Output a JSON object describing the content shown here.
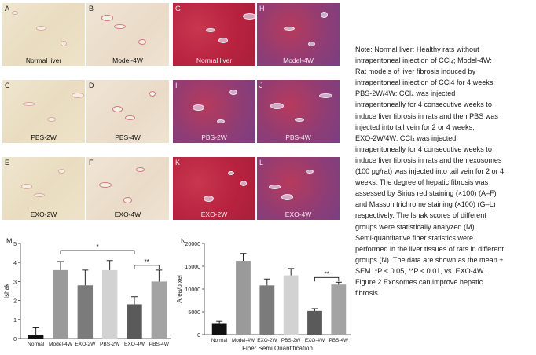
{
  "panels": [
    {
      "letter": "A",
      "caption": "Normal liver",
      "stain": "sirius"
    },
    {
      "letter": "B",
      "caption": "Model-4W",
      "stain": "sirius"
    },
    {
      "letter": "G",
      "caption": "Normal liver",
      "stain": "masson"
    },
    {
      "letter": "H",
      "caption": "Model-4W",
      "stain": "masson"
    },
    {
      "letter": "C",
      "caption": "PBS-2W",
      "stain": "sirius"
    },
    {
      "letter": "D",
      "caption": "PBS-4W",
      "stain": "sirius"
    },
    {
      "letter": "I",
      "caption": "PBS-2W",
      "stain": "masson"
    },
    {
      "letter": "J",
      "caption": "PBS-4W",
      "stain": "masson"
    },
    {
      "letter": "E",
      "caption": "EXO-2W",
      "stain": "sirius"
    },
    {
      "letter": "F",
      "caption": "EXO-4W",
      "stain": "sirius"
    },
    {
      "letter": "K",
      "caption": "EXO-2W",
      "stain": "masson"
    },
    {
      "letter": "L",
      "caption": "EXO-4W",
      "stain": "masson"
    }
  ],
  "note": {
    "lines": [
      "Note: Normal liver: Healthy rats without",
      "intraperitoneal injection of CCl₄; Model-4W:",
      "Rat models of liver fibrosis induced by",
      "intraperitoneal injection of CCl4 for 4 weeks;",
      "PBS-2W/4W: CCl₄ was injected",
      "intraperitoneally for 4 consecutive weeks to",
      "induce liver fibrosis in rats and then PBS was",
      "injected into tail vein for 2 or 4 weeks;",
      "EXO-2W/4W: CCl₄ was injected",
      "intraperitoneally for 4 consecutive weeks to",
      "induce liver fibrosis in rats and then exosomes",
      "(100 μg/rat) was injected into tail vein for 2 or 4",
      "weeks. The degree of hepatic fibrosis was",
      "assessed by Sirius red staining (×100) (A–F)",
      "and Masson trichrome staining (×100) (G–L)",
      "respectively. The Ishak scores of different",
      "groups were statistically analyzed (M).",
      "Semi-quantitative fiber statistics were",
      "performed in the liver tissues of rats in different",
      "groups (N). The data are shown as the mean ±",
      "SEM. *P < 0.05, **P < 0.01, vs. EXO-4W.",
      "Figure 2    Exosomes can improve hepatic",
      "fibrosis"
    ]
  },
  "chart_data": [
    {
      "type": "bar",
      "panel_label": "M",
      "categories": [
        "Normal",
        "Model-4W",
        "EXO-2W",
        "PBS-2W",
        "EXO-4W",
        "PBS-4W"
      ],
      "values": [
        0.2,
        3.6,
        2.8,
        3.6,
        1.8,
        3.0
      ],
      "errors": [
        0.4,
        0.45,
        0.8,
        0.5,
        0.4,
        0.6
      ],
      "colors": [
        "#111111",
        "#9a9a9a",
        "#7b7b7b",
        "#d2d2d2",
        "#5a5a5a",
        "#a3a3a3"
      ],
      "ylabel": "Ishak",
      "xlabel": "",
      "ylim": [
        0,
        5
      ],
      "yticks": [
        "0",
        "1",
        "2",
        "3",
        "4",
        "5"
      ],
      "significance": [
        {
          "from": 1,
          "to": 4,
          "label": "*"
        },
        {
          "from": 4,
          "to": 5,
          "label": "**"
        }
      ]
    },
    {
      "type": "bar",
      "panel_label": "N",
      "categories": [
        "Normal",
        "Model-4W",
        "EXO-2W",
        "PBS-2W",
        "EXO-4W",
        "PBS-4W"
      ],
      "values": [
        2500,
        16200,
        10800,
        13000,
        5200,
        11000
      ],
      "errors": [
        400,
        1600,
        1400,
        1500,
        500,
        500
      ],
      "colors": [
        "#111111",
        "#9a9a9a",
        "#7b7b7b",
        "#d2d2d2",
        "#5a5a5a",
        "#a3a3a3"
      ],
      "ylabel": "Area/pixel",
      "xlabel": "Fiber Semi Quantification",
      "ylim": [
        0,
        20000
      ],
      "yticks": [
        "0",
        "5000",
        "10000",
        "15000",
        "20000"
      ],
      "significance": [
        {
          "from": 4,
          "to": 5,
          "label": "**"
        }
      ]
    }
  ]
}
